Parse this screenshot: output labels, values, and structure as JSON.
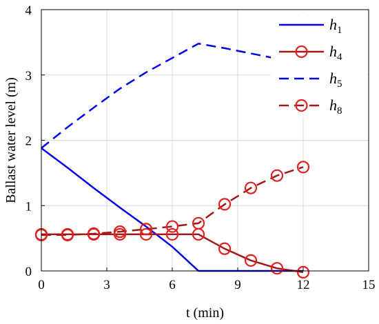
{
  "chart_data": {
    "type": "line",
    "xlabel": "t (min)",
    "ylabel": "Ballast water level (m)",
    "xlim": [
      0,
      15
    ],
    "ylim": [
      0,
      4
    ],
    "xticks": [
      "0",
      "3",
      "6",
      "9",
      "12",
      "15"
    ],
    "yticks": [
      "0",
      "1",
      "2",
      "3",
      "4"
    ],
    "grid": true,
    "legend_position": "top-right",
    "series": [
      {
        "name": "h",
        "subscript": "1",
        "color": "#0000ee",
        "line_style": "solid",
        "marker": "none",
        "x": [
          0,
          1.2,
          2.4,
          3.6,
          4.8,
          6.0,
          7.2,
          8.4,
          9.6,
          10.8,
          12.0
        ],
        "y": [
          1.88,
          1.58,
          1.27,
          0.97,
          0.68,
          0.37,
          0.0,
          0.0,
          0.0,
          0.0,
          0.0
        ]
      },
      {
        "name": "h",
        "subscript": "4",
        "color": "#a01818",
        "marker_color": "#e02020",
        "line_style": "solid",
        "marker": "circle",
        "x": [
          0,
          1.2,
          2.4,
          3.6,
          4.8,
          6.0,
          7.2,
          8.4,
          9.6,
          10.8,
          12.0
        ],
        "y": [
          0.56,
          0.56,
          0.56,
          0.56,
          0.56,
          0.56,
          0.56,
          0.34,
          0.16,
          0.04,
          -0.02
        ]
      },
      {
        "name": "h",
        "subscript": "5",
        "color": "#0000ee",
        "line_style": "dashed",
        "marker": "none",
        "x": [
          0,
          1.2,
          2.4,
          3.6,
          4.8,
          6.0,
          7.2,
          8.4,
          9.6,
          10.8,
          12.0
        ],
        "y": [
          1.88,
          2.2,
          2.5,
          2.79,
          3.04,
          3.26,
          3.48,
          3.41,
          3.33,
          3.25,
          3.17
        ]
      },
      {
        "name": "h",
        "subscript": "8",
        "color": "#a01818",
        "marker_color": "#e02020",
        "line_style": "dashed",
        "marker": "circle",
        "x": [
          0,
          1.2,
          2.4,
          3.6,
          4.8,
          6.0,
          7.2,
          8.4,
          9.6,
          10.8,
          12.0
        ],
        "y": [
          0.55,
          0.55,
          0.57,
          0.6,
          0.64,
          0.68,
          0.73,
          1.02,
          1.27,
          1.46,
          1.59
        ]
      }
    ]
  }
}
